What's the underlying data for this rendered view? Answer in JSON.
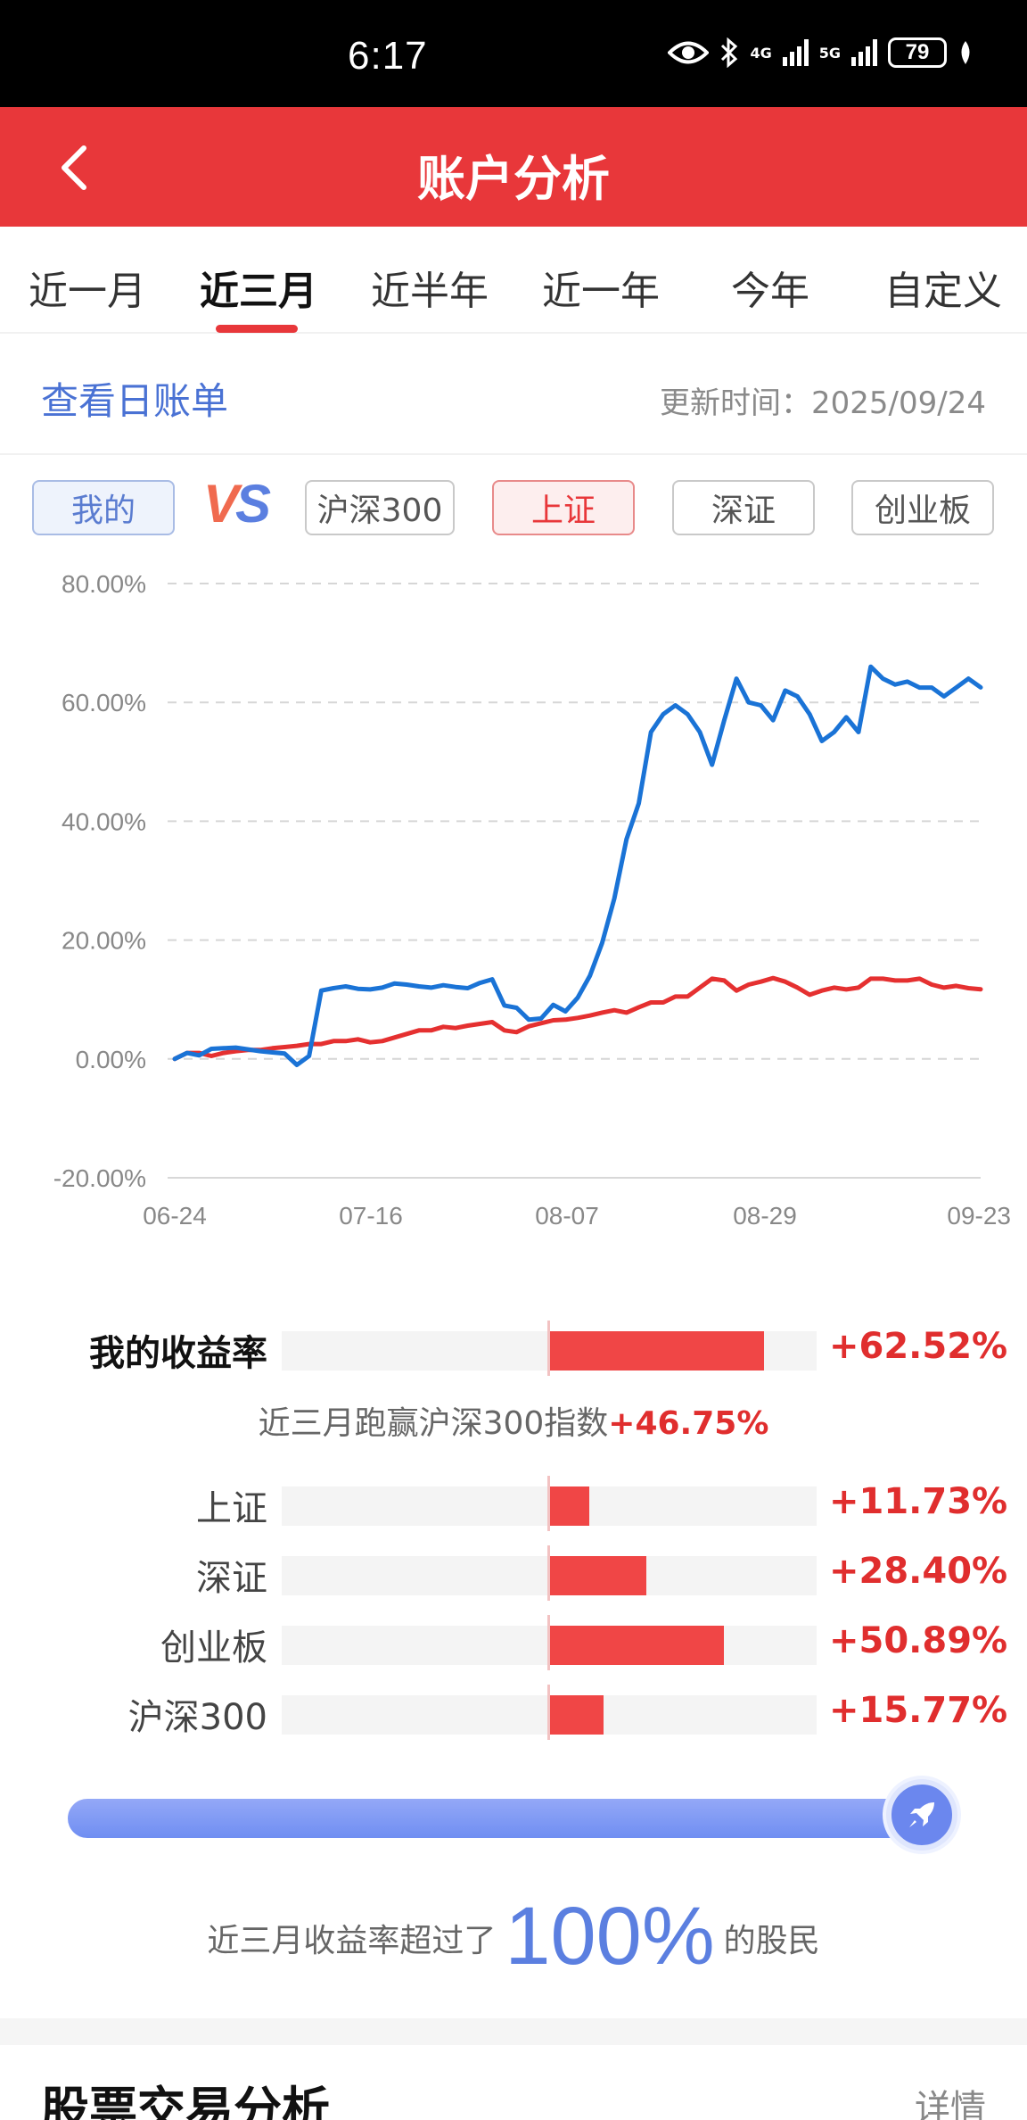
{
  "status": {
    "time": "6:17",
    "net1": "4G",
    "net2": "5G",
    "battery": "79"
  },
  "header": {
    "title": "账户分析"
  },
  "tabs": [
    "近一月",
    "近三月",
    "近半年",
    "近一年",
    "今年",
    "自定义"
  ],
  "active_tab": "近三月",
  "info": {
    "daily_bill": "查看日账单",
    "update_label": "更新时间：",
    "update_date": "2025/09/24"
  },
  "compare": {
    "mine": "我的",
    "vs": "VS",
    "items": [
      "沪深300",
      "上证",
      "深证",
      "创业板"
    ],
    "selected": "上证"
  },
  "colors": {
    "brand_red": "#e8373a",
    "mine_line": "#1a73d6",
    "index_line": "#e53030",
    "accent_blue": "#5b7fe0"
  },
  "chart_data": {
    "type": "line",
    "y_ticks": [
      "80.00%",
      "60.00%",
      "40.00%",
      "20.00%",
      "0.00%",
      "-20.00%"
    ],
    "x_ticks": [
      "06-24",
      "07-16",
      "08-07",
      "08-29",
      "09-23"
    ],
    "ylim": [
      -20,
      80
    ],
    "grid": true,
    "series": [
      {
        "name": "我的",
        "color": "#1a73d6",
        "values": [
          0,
          1.0,
          0.6,
          1.7,
          1.8,
          1.9,
          1.6,
          1.3,
          1.1,
          0.9,
          -1.0,
          0.5,
          11.5,
          11.9,
          12.2,
          11.8,
          11.7,
          12.0,
          12.7,
          12.5,
          12.2,
          12.0,
          12.4,
          12.1,
          11.9,
          12.8,
          13.4,
          9.0,
          8.6,
          6.6,
          6.8,
          9.1,
          8.0,
          10.3,
          14.0,
          19.5,
          27.0,
          37.0,
          43.0,
          55.0,
          58.0,
          59.5,
          58.0,
          55.0,
          49.5,
          57.0,
          64.0,
          60.0,
          59.5,
          57.0,
          62.0,
          61.0,
          58.0,
          53.5,
          55.0,
          57.5,
          55.0,
          66.0,
          64.0,
          63.0,
          63.5,
          62.5,
          62.5,
          61.0,
          62.5,
          64.0,
          62.52
        ]
      },
      {
        "name": "上证",
        "color": "#e53030",
        "values": [
          0,
          1.0,
          1.0,
          0.5,
          1.0,
          1.3,
          1.5,
          1.5,
          1.8,
          2.0,
          2.2,
          2.5,
          2.5,
          3.0,
          3.0,
          3.3,
          2.8,
          3.0,
          3.6,
          4.2,
          4.8,
          4.8,
          5.4,
          5.2,
          5.6,
          5.9,
          6.2,
          4.8,
          4.5,
          5.5,
          6.0,
          6.5,
          6.6,
          6.9,
          7.3,
          7.8,
          8.2,
          7.8,
          8.7,
          9.5,
          9.5,
          10.5,
          10.5,
          12.0,
          13.5,
          13.2,
          11.5,
          12.5,
          13.0,
          13.6,
          13.0,
          12.0,
          10.8,
          11.5,
          12.0,
          11.7,
          12.0,
          13.5,
          13.5,
          13.2,
          13.2,
          13.5,
          12.5,
          12.0,
          12.3,
          11.9,
          11.73
        ]
      }
    ]
  },
  "comparison": {
    "mine": {
      "label": "我的收益率",
      "value": "+62.52%",
      "pct": 62.52
    },
    "beat_text": "近三月跑赢沪深300指数",
    "beat_value": "+46.75%",
    "rows": [
      {
        "label": "上证",
        "value": "+11.73%",
        "pct": 11.73
      },
      {
        "label": "深证",
        "value": "+28.40%",
        "pct": 28.4
      },
      {
        "label": "创业板",
        "value": "+50.89%",
        "pct": 50.89
      },
      {
        "label": "沪深300",
        "value": "+15.77%",
        "pct": 15.77
      }
    ]
  },
  "ranking": {
    "progress": 1.0,
    "prefix": "近三月收益率超过了",
    "percent": "100%",
    "suffix": "的股民"
  },
  "section": {
    "title": "股票交易分析",
    "more": "详情"
  }
}
